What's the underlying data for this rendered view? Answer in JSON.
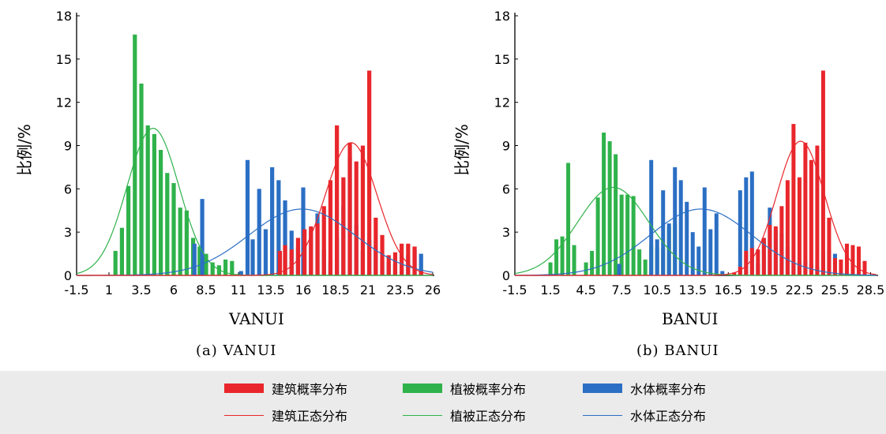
{
  "captions": [
    "(a) VANUI",
    "(b) BANUI"
  ],
  "legend": {
    "items": [
      {
        "label": "建筑概率分布",
        "kind": "bar",
        "color": "#e8262b"
      },
      {
        "label": "植被概率分布",
        "kind": "bar",
        "color": "#2fb24b"
      },
      {
        "label": "水体概率分布",
        "kind": "bar",
        "color": "#2b6fc4"
      },
      {
        "label": "建筑正态分布",
        "kind": "line",
        "color": "#e8262b"
      },
      {
        "label": "植被正态分布",
        "kind": "line",
        "color": "#2fb24b"
      },
      {
        "label": "水体正态分布",
        "kind": "line",
        "color": "#2b6fc4"
      }
    ]
  },
  "chart_data": [
    {
      "type": "bar",
      "xlabel": "VANUI",
      "ylabel": "比例/%",
      "xlim": [
        -1.5,
        26
      ],
      "ylim": [
        0,
        18
      ],
      "xticks": [
        "-1.5",
        "1",
        "3.5",
        "6",
        "8.5",
        "11",
        "13.5",
        "16",
        "18.5",
        "21",
        "23.5",
        "26"
      ],
      "yticks": [
        "0",
        "3",
        "6",
        "9",
        "12",
        "15",
        "18"
      ],
      "series": [
        {
          "name": "植被概率分布",
          "color": "#2fb24b",
          "x": [
            1.5,
            2.0,
            2.5,
            3.0,
            3.5,
            4.0,
            4.5,
            5.0,
            5.5,
            6.0,
            6.5,
            7.0,
            7.5,
            8.0,
            8.5,
            9.0,
            9.5,
            10.0,
            10.5
          ],
          "values": [
            1.7,
            3.3,
            6.2,
            16.7,
            13.3,
            10.4,
            9.8,
            8.7,
            7.1,
            6.4,
            4.7,
            4.5,
            2.6,
            2.0,
            1.5,
            0.9,
            0.7,
            1.1,
            1.0
          ]
        },
        {
          "name": "水体概率分布",
          "color": "#2b6fc4",
          "x": [
            7.6,
            8.2,
            11.2,
            11.7,
            12.1,
            12.6,
            13.1,
            13.6,
            14.1,
            14.6,
            15.1,
            15.6,
            16.0,
            16.6,
            17.1,
            17.6,
            18.1,
            18.6,
            19.1,
            19.6,
            20.1,
            20.6,
            21.1,
            21.6,
            22.1,
            22.6,
            23.1,
            23.6,
            24.1,
            24.6,
            25.1
          ],
          "values": [
            2.2,
            5.3,
            0.3,
            8.0,
            2.5,
            6.0,
            3.2,
            7.5,
            6.6,
            5.2,
            3.1,
            2.0,
            6.1,
            3.3,
            4.3,
            1.8,
            0.9,
            2.6,
            4.8,
            8.2,
            3.5,
            1.7,
            2.5,
            2.0,
            1.0,
            0.9,
            0.8,
            0.4,
            1.4,
            1.8,
            1.5
          ]
        },
        {
          "name": "建筑概率分布",
          "color": "#e8262b",
          "x": [
            14.2,
            14.6,
            15.1,
            15.6,
            16.1,
            16.6,
            17.1,
            17.6,
            18.1,
            18.6,
            19.1,
            19.6,
            20.1,
            20.6,
            21.1,
            21.6,
            22.1,
            22.6,
            23.1,
            23.6,
            24.1,
            24.6,
            25.1
          ],
          "values": [
            1.7,
            2.1,
            1.8,
            2.6,
            3.2,
            3.4,
            3.6,
            4.8,
            6.6,
            10.4,
            6.8,
            9.2,
            7.9,
            9.0,
            14.2,
            4.0,
            2.8,
            1.4,
            1.6,
            2.2,
            2.2,
            2.0,
            0.3
          ]
        },
        {
          "name": "植被正态分布",
          "color": "#2fb24b",
          "kind": "line",
          "mean": 4.4,
          "sd": 2.0,
          "peak": 10.2
        },
        {
          "name": "水体正态分布",
          "color": "#2b6fc4",
          "kind": "line",
          "mean": 15.9,
          "sd": 4.1,
          "peak": 4.6
        },
        {
          "name": "建筑正态分布",
          "color": "#e8262b",
          "kind": "line",
          "mean": 19.7,
          "sd": 2.0,
          "peak": 9.2
        }
      ]
    },
    {
      "type": "bar",
      "xlabel": "BANUI",
      "ylabel": "比例/%",
      "xlim": [
        -1.5,
        29
      ],
      "ylim": [
        0,
        18
      ],
      "xticks": [
        "-1.5",
        "1.5",
        "4.5",
        "7.5",
        "10.5",
        "13.5",
        "16.5",
        "19.5",
        "22.5",
        "25.5",
        "28.5"
      ],
      "yticks": [
        "0",
        "3",
        "6",
        "9",
        "12",
        "15",
        "18"
      ],
      "series": [
        {
          "name": "植被概率分布",
          "color": "#2fb24b",
          "x": [
            1.5,
            2.0,
            2.5,
            3.0,
            3.5,
            4.5,
            5.0,
            5.5,
            6.0,
            6.5,
            7.0,
            7.5,
            8.0,
            8.5,
            9.0,
            9.5,
            10.0,
            10.5,
            11.0,
            11.5,
            12.0
          ],
          "values": [
            0.9,
            2.5,
            2.7,
            7.8,
            2.1,
            0.9,
            1.7,
            5.4,
            9.9,
            9.3,
            8.4,
            5.6,
            5.6,
            5.5,
            1.8,
            1.1,
            2.1,
            1.9,
            1.9,
            3.4,
            3.6
          ]
        },
        {
          "name": "水体概率分布",
          "color": "#2b6fc4",
          "x": [
            7.3,
            10.0,
            10.5,
            11.0,
            11.5,
            12.0,
            12.5,
            13.0,
            13.5,
            14.0,
            14.5,
            15.0,
            15.5,
            16.0,
            17.5,
            18.0,
            18.5,
            19.0,
            19.5,
            20.0,
            20.5,
            21.0,
            21.5,
            22.0,
            22.5,
            23.0,
            23.5,
            24.0,
            24.5,
            25.0,
            25.5
          ],
          "values": [
            0.8,
            8.0,
            2.5,
            5.9,
            3.6,
            7.5,
            6.6,
            5.1,
            3.0,
            2.0,
            6.1,
            3.2,
            4.3,
            0.3,
            5.9,
            6.8,
            7.2,
            0.8,
            2.6,
            4.7,
            3.1,
            2.9,
            2.0,
            0.9,
            1.0,
            1.0,
            0.8,
            0.6,
            1.6,
            1.8,
            1.5
          ]
        },
        {
          "name": "建筑概率分布",
          "color": "#e8262b",
          "x": [
            17.0,
            17.5,
            18.0,
            18.5,
            19.0,
            19.5,
            20.0,
            20.5,
            21.0,
            21.5,
            22.0,
            22.5,
            23.0,
            23.5,
            24.0,
            24.5,
            25.0,
            25.5,
            26.0,
            26.5,
            27.0,
            27.5,
            28.0
          ],
          "values": [
            0.2,
            0.6,
            1.7,
            1.9,
            1.8,
            2.6,
            3.5,
            3.4,
            4.8,
            6.6,
            10.5,
            6.8,
            9.2,
            8.0,
            9.0,
            14.2,
            4.0,
            1.2,
            1.1,
            2.2,
            2.1,
            2.0,
            1.0
          ]
        },
        {
          "name": "植被正态分布",
          "color": "#2fb24b",
          "kind": "line",
          "mean": 6.8,
          "sd": 3.0,
          "peak": 6.1
        },
        {
          "name": "水体正态分布",
          "color": "#2b6fc4",
          "kind": "line",
          "mean": 14.2,
          "sd": 4.3,
          "peak": 4.6
        },
        {
          "name": "建筑正态分布",
          "color": "#e8262b",
          "kind": "line",
          "mean": 22.6,
          "sd": 2.0,
          "peak": 9.3
        }
      ]
    }
  ]
}
